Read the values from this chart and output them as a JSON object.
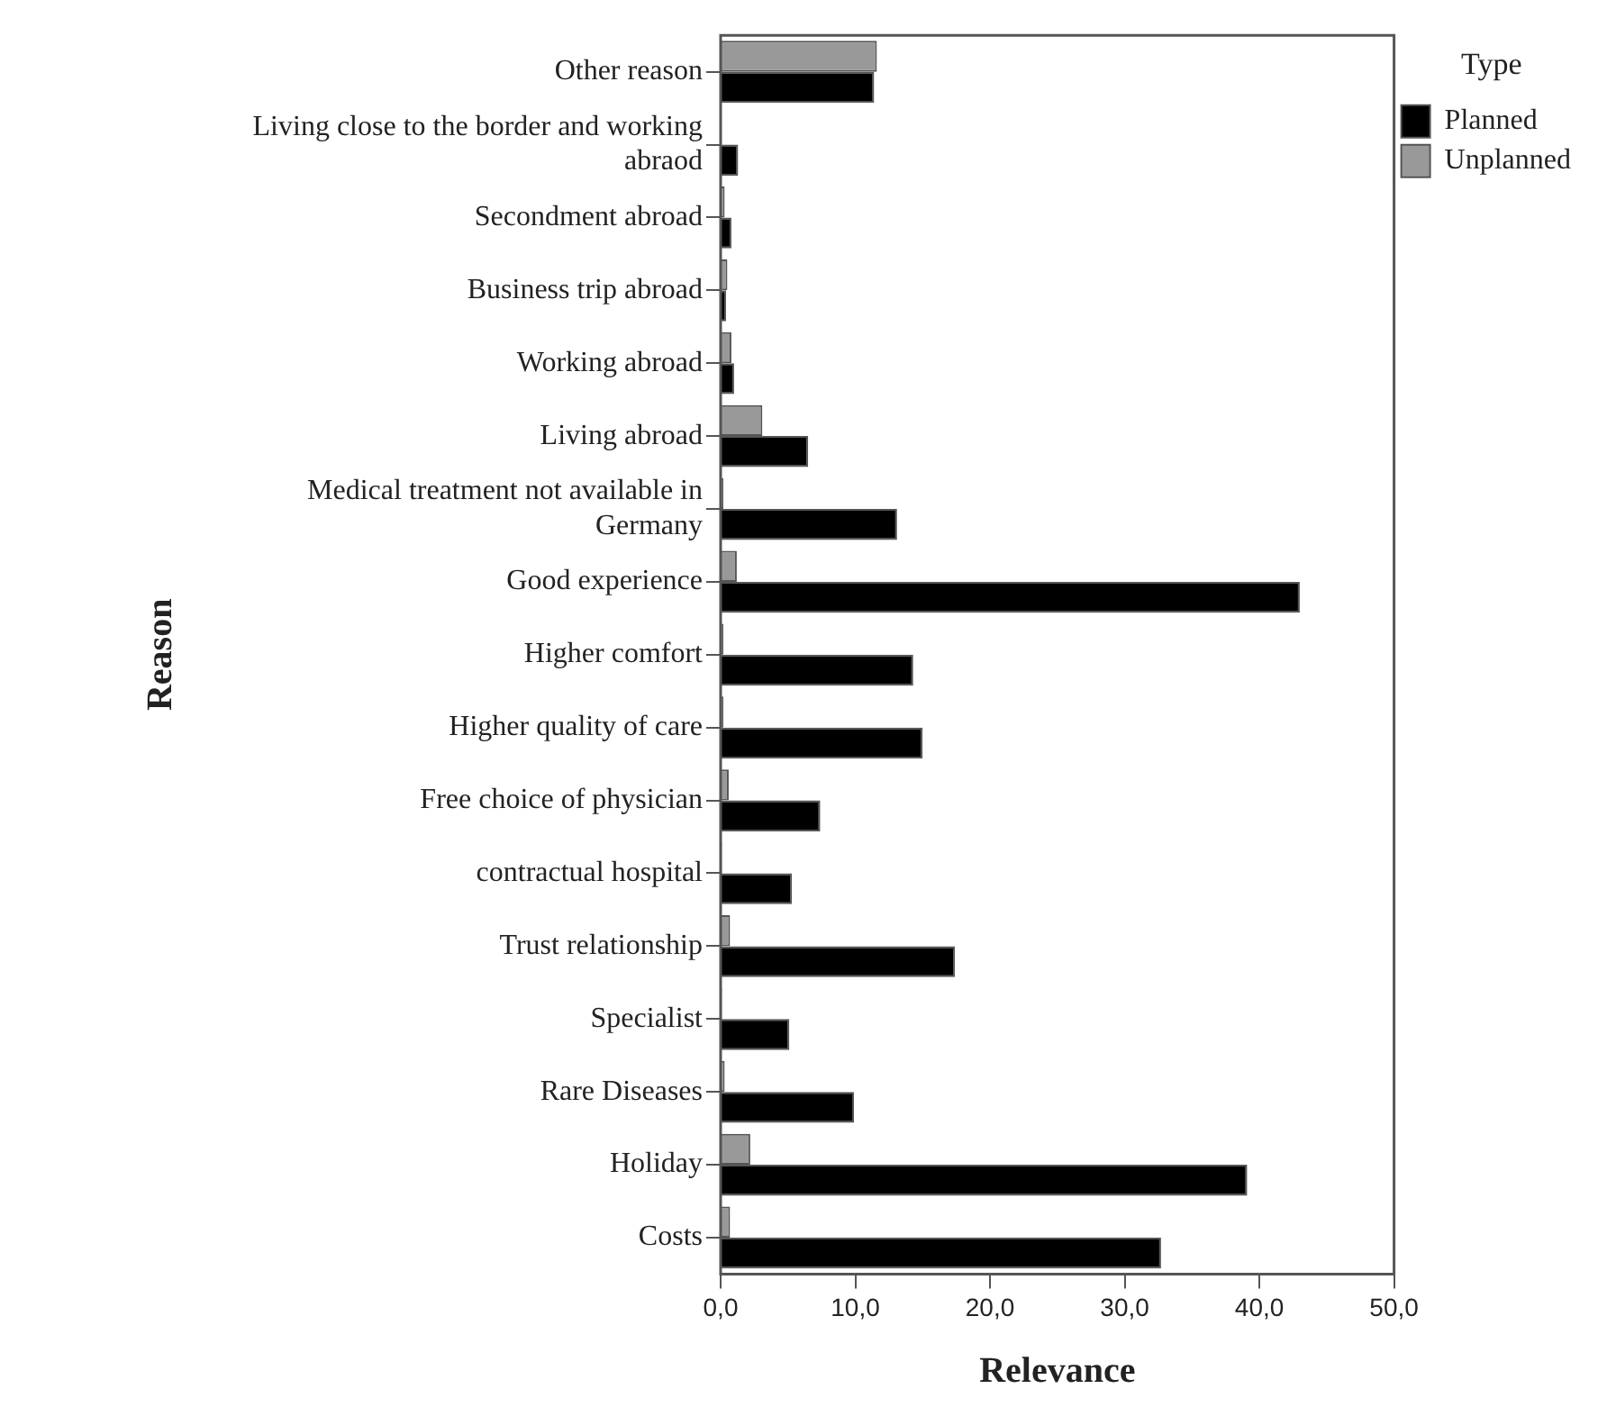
{
  "chart_data": {
    "type": "bar",
    "orientation": "horizontal",
    "xlabel": "Relevance",
    "ylabel": "Reason",
    "legend_title": "Type",
    "legend": "top right",
    "grid": false,
    "categories": [
      "Other reason",
      "Living close to the border and working abraod",
      "Secondment abroad",
      "Business trip abroad",
      "Working abroad",
      "Living abroad",
      "Medical treatment not available in Germany",
      "Good experience",
      "Higher comfort",
      "Higher quality of care",
      "Free choice of physician",
      "contractual hospital",
      "Trust relationship",
      "Specialist",
      "Rare Diseases",
      "Holiday",
      "Costs"
    ],
    "series": [
      {
        "name": "Planned",
        "color": "#000000",
        "values": [
          11.4,
          1.3,
          0.8,
          0.4,
          1.0,
          6.5,
          13.1,
          43.0,
          14.3,
          15.0,
          7.4,
          5.3,
          17.4,
          5.1,
          9.9,
          39.1,
          32.7
        ]
      },
      {
        "name": "Unplanned",
        "color": "#999999",
        "values": [
          11.6,
          0,
          0.3,
          0.5,
          0.8,
          3.1,
          0.2,
          1.2,
          0.2,
          0.2,
          0.6,
          0.1,
          0.7,
          0.1,
          0.3,
          2.2,
          0.7
        ]
      }
    ],
    "xlim": [
      0,
      50
    ],
    "xticks": [
      {
        "value": 0,
        "label": "0,0"
      },
      {
        "value": 10,
        "label": "10,0"
      },
      {
        "value": 20,
        "label": "20,0"
      },
      {
        "value": 30,
        "label": "30,0"
      },
      {
        "value": 40,
        "label": "40,0"
      },
      {
        "value": 50,
        "label": "50,0"
      }
    ]
  }
}
